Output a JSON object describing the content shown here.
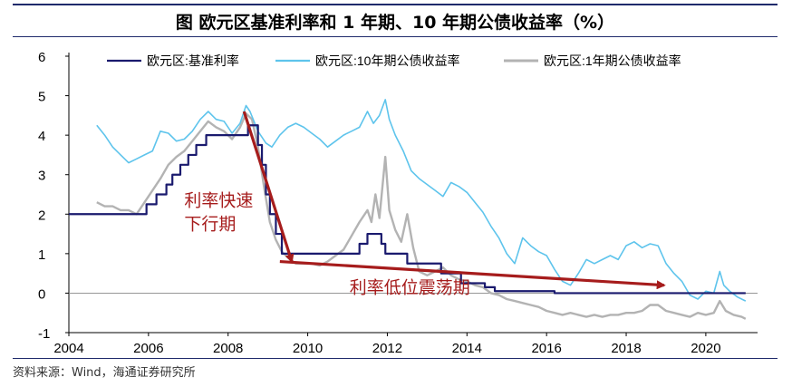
{
  "header": {
    "title": "图  欧元区基准利率和 1 年期、10 年期公债收益率（%）"
  },
  "footer": {
    "source": "资料来源：Wind，海通证券研究所"
  },
  "colors": {
    "policy": "#1a1a6e",
    "y10": "#5ec4ec",
    "y1": "#b3b3b3",
    "arrow": "#a61c1c",
    "axis": "#000000"
  },
  "chart_data": {
    "type": "line",
    "title": "欧元区基准利率和 1 年期、10 年期公债收益率（%）",
    "xlabel": "",
    "ylabel": "",
    "xlim": [
      2004,
      2021.3
    ],
    "ylim": [
      -1,
      6
    ],
    "xticks": [
      2004,
      2006,
      2008,
      2010,
      2012,
      2014,
      2016,
      2018,
      2020
    ],
    "yticks": [
      -1,
      0,
      1,
      2,
      3,
      4,
      5,
      6
    ],
    "legend": "top",
    "series": [
      {
        "name": "欧元区:基准利率",
        "key": "policy",
        "step": [
          [
            2004.0,
            2.0
          ],
          [
            2005.95,
            2.25
          ],
          [
            2006.2,
            2.5
          ],
          [
            2006.45,
            2.75
          ],
          [
            2006.6,
            3.0
          ],
          [
            2006.8,
            3.25
          ],
          [
            2007.0,
            3.5
          ],
          [
            2007.2,
            3.75
          ],
          [
            2007.45,
            4.0
          ],
          [
            2008.5,
            4.25
          ],
          [
            2008.75,
            3.75
          ],
          [
            2008.85,
            3.25
          ],
          [
            2008.95,
            2.5
          ],
          [
            2009.05,
            2.0
          ],
          [
            2009.2,
            1.5
          ],
          [
            2009.35,
            1.0
          ],
          [
            2011.3,
            1.25
          ],
          [
            2011.5,
            1.5
          ],
          [
            2011.85,
            1.25
          ],
          [
            2011.95,
            1.0
          ],
          [
            2012.5,
            0.75
          ],
          [
            2013.35,
            0.5
          ],
          [
            2013.85,
            0.25
          ],
          [
            2014.45,
            0.15
          ],
          [
            2014.7,
            0.05
          ],
          [
            2016.2,
            0.0
          ],
          [
            2021.0,
            0.0
          ]
        ]
      },
      {
        "name": "欧元区:10年期公债收益率",
        "key": "y10",
        "points": [
          [
            2004.7,
            4.25
          ],
          [
            2004.9,
            4.0
          ],
          [
            2005.1,
            3.7
          ],
          [
            2005.3,
            3.5
          ],
          [
            2005.5,
            3.3
          ],
          [
            2005.7,
            3.4
          ],
          [
            2005.9,
            3.5
          ],
          [
            2006.1,
            3.6
          ],
          [
            2006.3,
            4.1
          ],
          [
            2006.5,
            4.05
          ],
          [
            2006.7,
            3.85
          ],
          [
            2006.9,
            3.9
          ],
          [
            2007.1,
            4.1
          ],
          [
            2007.3,
            4.4
          ],
          [
            2007.5,
            4.6
          ],
          [
            2007.7,
            4.4
          ],
          [
            2007.9,
            4.35
          ],
          [
            2008.1,
            4.05
          ],
          [
            2008.3,
            4.3
          ],
          [
            2008.45,
            4.75
          ],
          [
            2008.55,
            4.6
          ],
          [
            2008.75,
            4.1
          ],
          [
            2008.95,
            3.8
          ],
          [
            2009.1,
            3.7
          ],
          [
            2009.3,
            4.0
          ],
          [
            2009.5,
            4.2
          ],
          [
            2009.7,
            4.3
          ],
          [
            2009.9,
            4.2
          ],
          [
            2010.1,
            4.05
          ],
          [
            2010.3,
            3.9
          ],
          [
            2010.5,
            3.7
          ],
          [
            2010.7,
            3.85
          ],
          [
            2010.9,
            4.0
          ],
          [
            2011.1,
            4.1
          ],
          [
            2011.3,
            4.2
          ],
          [
            2011.5,
            4.6
          ],
          [
            2011.65,
            4.3
          ],
          [
            2011.8,
            4.5
          ],
          [
            2011.95,
            4.9
          ],
          [
            2012.05,
            4.4
          ],
          [
            2012.2,
            4.0
          ],
          [
            2012.4,
            3.6
          ],
          [
            2012.6,
            3.1
          ],
          [
            2012.8,
            2.9
          ],
          [
            2013.0,
            2.75
          ],
          [
            2013.2,
            2.6
          ],
          [
            2013.4,
            2.45
          ],
          [
            2013.6,
            2.8
          ],
          [
            2013.8,
            2.7
          ],
          [
            2014.0,
            2.55
          ],
          [
            2014.2,
            2.3
          ],
          [
            2014.4,
            2.05
          ],
          [
            2014.6,
            1.7
          ],
          [
            2014.8,
            1.4
          ],
          [
            2015.0,
            1.0
          ],
          [
            2015.2,
            0.75
          ],
          [
            2015.4,
            1.4
          ],
          [
            2015.6,
            1.2
          ],
          [
            2015.8,
            1.05
          ],
          [
            2016.0,
            0.95
          ],
          [
            2016.2,
            0.6
          ],
          [
            2016.4,
            0.3
          ],
          [
            2016.6,
            0.2
          ],
          [
            2016.8,
            0.5
          ],
          [
            2017.0,
            0.85
          ],
          [
            2017.2,
            0.75
          ],
          [
            2017.4,
            0.85
          ],
          [
            2017.6,
            0.95
          ],
          [
            2017.8,
            0.85
          ],
          [
            2018.0,
            1.2
          ],
          [
            2018.2,
            1.3
          ],
          [
            2018.4,
            1.15
          ],
          [
            2018.6,
            1.25
          ],
          [
            2018.8,
            1.2
          ],
          [
            2019.0,
            0.75
          ],
          [
            2019.2,
            0.5
          ],
          [
            2019.4,
            0.3
          ],
          [
            2019.6,
            -0.05
          ],
          [
            2019.8,
            -0.15
          ],
          [
            2020.0,
            0.05
          ],
          [
            2020.2,
            0.0
          ],
          [
            2020.35,
            0.55
          ],
          [
            2020.45,
            0.2
          ],
          [
            2020.6,
            0.05
          ],
          [
            2020.8,
            -0.1
          ],
          [
            2021.0,
            -0.2
          ]
        ]
      },
      {
        "name": "欧元区:1年期公债收益率",
        "key": "y1",
        "points": [
          [
            2004.7,
            2.3
          ],
          [
            2004.9,
            2.2
          ],
          [
            2005.1,
            2.2
          ],
          [
            2005.3,
            2.1
          ],
          [
            2005.5,
            2.1
          ],
          [
            2005.7,
            2.0
          ],
          [
            2005.9,
            2.3
          ],
          [
            2006.1,
            2.6
          ],
          [
            2006.3,
            2.9
          ],
          [
            2006.5,
            3.25
          ],
          [
            2006.7,
            3.45
          ],
          [
            2006.9,
            3.6
          ],
          [
            2007.1,
            3.85
          ],
          [
            2007.3,
            4.1
          ],
          [
            2007.5,
            4.35
          ],
          [
            2007.7,
            4.2
          ],
          [
            2007.9,
            4.1
          ],
          [
            2008.1,
            3.9
          ],
          [
            2008.3,
            4.2
          ],
          [
            2008.45,
            4.55
          ],
          [
            2008.6,
            4.4
          ],
          [
            2008.75,
            3.7
          ],
          [
            2008.9,
            2.7
          ],
          [
            2009.05,
            1.8
          ],
          [
            2009.2,
            1.35
          ],
          [
            2009.35,
            1.05
          ],
          [
            2009.5,
            0.9
          ],
          [
            2009.7,
            0.75
          ],
          [
            2009.9,
            0.75
          ],
          [
            2010.1,
            0.75
          ],
          [
            2010.3,
            0.7
          ],
          [
            2010.5,
            0.8
          ],
          [
            2010.7,
            0.95
          ],
          [
            2010.9,
            1.1
          ],
          [
            2011.1,
            1.45
          ],
          [
            2011.3,
            1.8
          ],
          [
            2011.5,
            2.1
          ],
          [
            2011.6,
            1.8
          ],
          [
            2011.7,
            2.5
          ],
          [
            2011.8,
            1.9
          ],
          [
            2011.95,
            3.45
          ],
          [
            2012.05,
            2.1
          ],
          [
            2012.2,
            1.6
          ],
          [
            2012.35,
            1.3
          ],
          [
            2012.5,
            2.0
          ],
          [
            2012.65,
            1.15
          ],
          [
            2012.8,
            0.55
          ],
          [
            2013.0,
            0.45
          ],
          [
            2013.2,
            0.55
          ],
          [
            2013.4,
            0.65
          ],
          [
            2013.6,
            0.45
          ],
          [
            2013.8,
            0.35
          ],
          [
            2014.0,
            0.3
          ],
          [
            2014.2,
            0.2
          ],
          [
            2014.4,
            0.15
          ],
          [
            2014.6,
            0.0
          ],
          [
            2014.8,
            -0.05
          ],
          [
            2015.0,
            -0.15
          ],
          [
            2015.2,
            -0.2
          ],
          [
            2015.4,
            -0.25
          ],
          [
            2015.6,
            -0.3
          ],
          [
            2015.8,
            -0.35
          ],
          [
            2016.0,
            -0.45
          ],
          [
            2016.2,
            -0.5
          ],
          [
            2016.4,
            -0.55
          ],
          [
            2016.6,
            -0.5
          ],
          [
            2016.8,
            -0.55
          ],
          [
            2017.0,
            -0.6
          ],
          [
            2017.2,
            -0.55
          ],
          [
            2017.4,
            -0.6
          ],
          [
            2017.6,
            -0.55
          ],
          [
            2017.8,
            -0.55
          ],
          [
            2018.0,
            -0.5
          ],
          [
            2018.2,
            -0.5
          ],
          [
            2018.4,
            -0.45
          ],
          [
            2018.6,
            -0.3
          ],
          [
            2018.8,
            -0.3
          ],
          [
            2019.0,
            -0.45
          ],
          [
            2019.2,
            -0.5
          ],
          [
            2019.4,
            -0.55
          ],
          [
            2019.6,
            -0.6
          ],
          [
            2019.8,
            -0.5
          ],
          [
            2020.0,
            -0.55
          ],
          [
            2020.2,
            -0.5
          ],
          [
            2020.35,
            -0.2
          ],
          [
            2020.5,
            -0.45
          ],
          [
            2020.7,
            -0.55
          ],
          [
            2020.9,
            -0.6
          ],
          [
            2021.0,
            -0.65
          ]
        ]
      }
    ],
    "annotations": [
      {
        "text_lines": [
          "利率快速",
          "下行期"
        ],
        "x": 2006.9,
        "y": 2.2
      },
      {
        "text_lines": [
          "利率低位震荡期"
        ],
        "x": 2011.05,
        "y": 0.0
      }
    ],
    "arrows": [
      {
        "from": [
          2008.4,
          4.6
        ],
        "to": [
          2009.6,
          0.8
        ]
      },
      {
        "from": [
          2009.3,
          0.8
        ],
        "to": [
          2018.95,
          0.2
        ]
      }
    ]
  }
}
